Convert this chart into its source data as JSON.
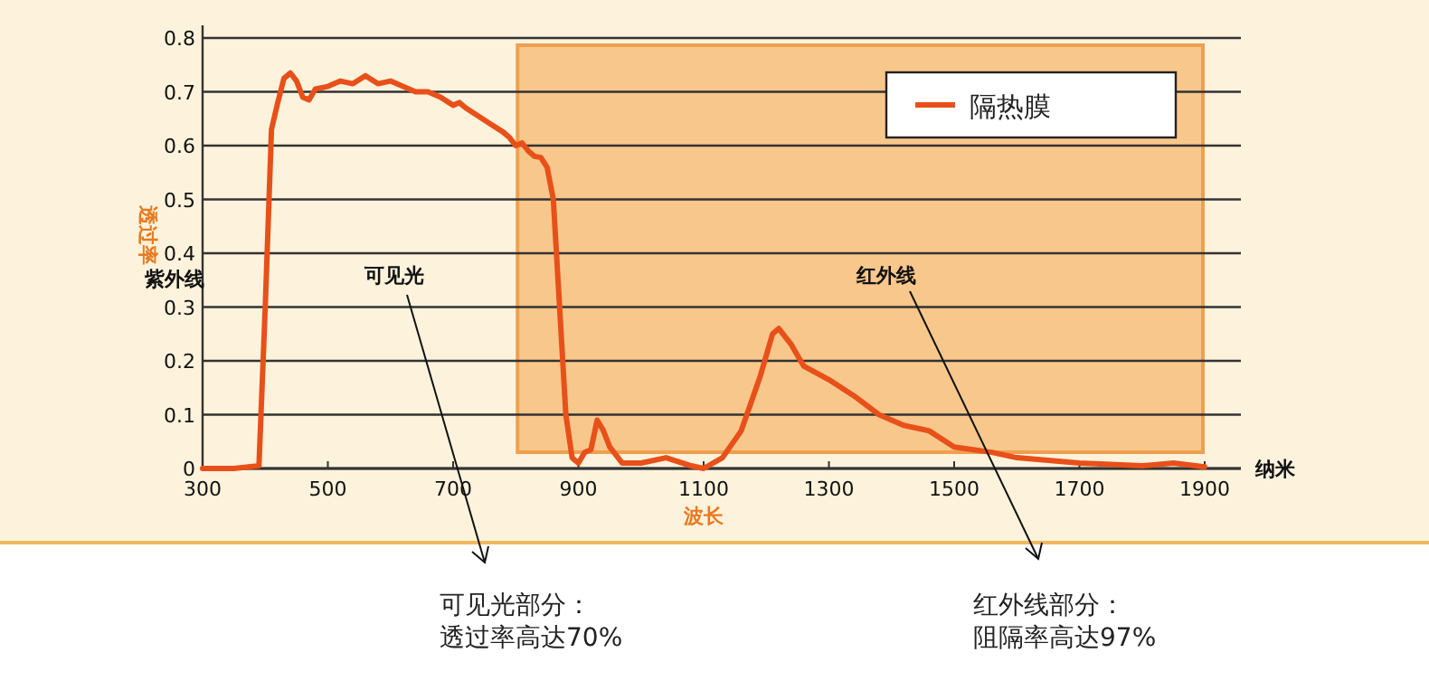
{
  "chart_data": {
    "type": "line",
    "xlabel": "波长",
    "ylabel": "透过率",
    "xlim": [
      300,
      1900
    ],
    "xticks": [
      300,
      500,
      700,
      900,
      1100,
      1300,
      1500,
      1700,
      1900
    ],
    "ylim": [
      0,
      0.8
    ],
    "yticks": [
      0,
      0.1,
      0.2,
      0.3,
      0.4,
      0.5,
      0.6,
      0.7,
      0.8
    ],
    "grid": "y",
    "legend": "top right",
    "marker": "none",
    "line_style": "solid",
    "bands": [
      {
        "axis": "x",
        "from": 800,
        "to": 1900,
        "color": "#f5b870"
      }
    ],
    "annotations": [
      "紫外线",
      "可见光",
      "红外线",
      "纳米",
      "可见光部分：",
      "透过率高达70%",
      "红外线部分：",
      "阻隔率高达97%"
    ],
    "series": [
      {
        "name": "隔热膜",
        "color": "#e8501a",
        "x": [
          300,
          350,
          390,
          400,
          410,
          420,
          430,
          440,
          450,
          460,
          470,
          480,
          500,
          520,
          540,
          560,
          580,
          600,
          620,
          640,
          660,
          680,
          700,
          710,
          720,
          740,
          760,
          780,
          790,
          800,
          810,
          820,
          830,
          840,
          850,
          860,
          870,
          880,
          890,
          900,
          910,
          920,
          930,
          940,
          950,
          970,
          1000,
          1040,
          1080,
          1100,
          1130,
          1160,
          1190,
          1210,
          1220,
          1240,
          1260,
          1300,
          1340,
          1380,
          1420,
          1460,
          1500,
          1560,
          1600,
          1700,
          1800,
          1850,
          1900
        ],
        "values": [
          0,
          0,
          0.005,
          0.3,
          0.63,
          0.68,
          0.725,
          0.735,
          0.72,
          0.69,
          0.685,
          0.705,
          0.71,
          0.72,
          0.715,
          0.73,
          0.715,
          0.72,
          0.71,
          0.7,
          0.7,
          0.69,
          0.675,
          0.68,
          0.67,
          0.655,
          0.64,
          0.625,
          0.615,
          0.6,
          0.605,
          0.59,
          0.58,
          0.578,
          0.56,
          0.5,
          0.3,
          0.1,
          0.02,
          0.01,
          0.03,
          0.035,
          0.09,
          0.07,
          0.04,
          0.01,
          0.01,
          0.02,
          0.005,
          0,
          0.02,
          0.07,
          0.17,
          0.25,
          0.26,
          0.23,
          0.19,
          0.165,
          0.135,
          0.1,
          0.08,
          0.07,
          0.04,
          0.03,
          0.02,
          0.01,
          0.005,
          0.01,
          0.003
        ]
      }
    ]
  }
}
